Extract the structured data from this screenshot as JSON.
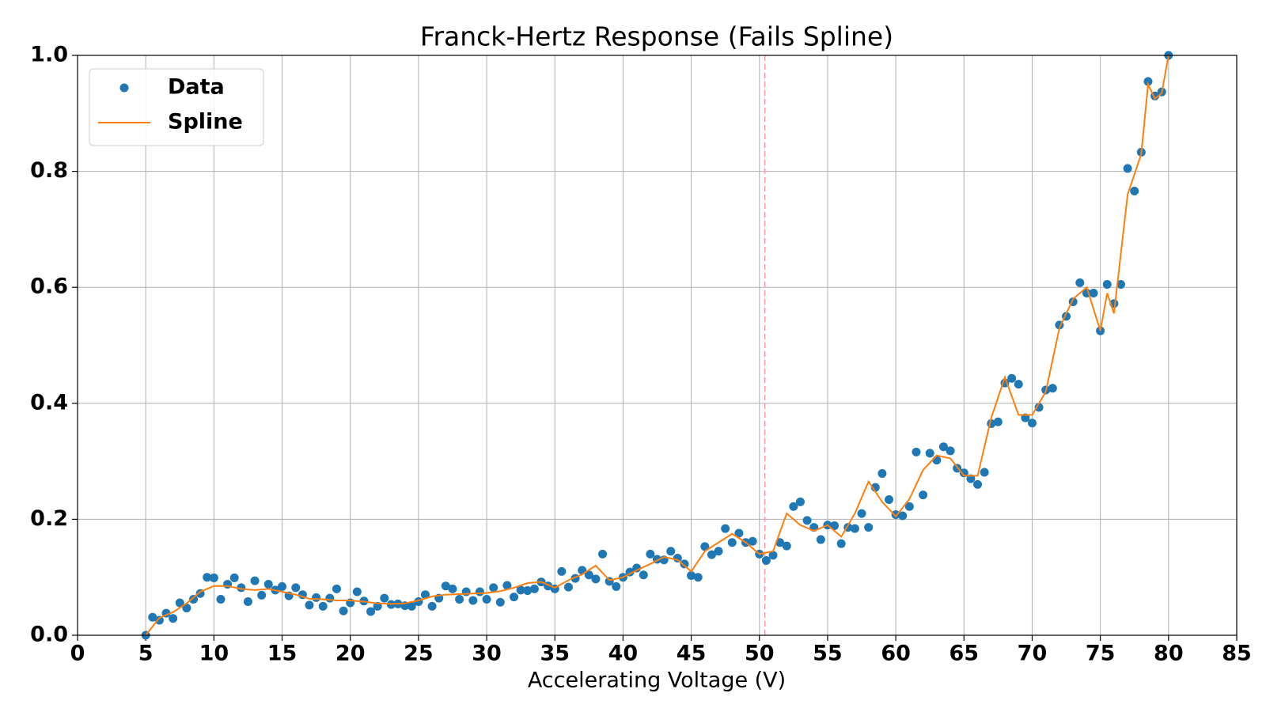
{
  "chart_data": {
    "type": "line-scatter",
    "title": "Franck-Hertz Response (Fails Spline)",
    "x_label": "Accelerating Voltage (V)",
    "xlim": [
      0,
      85
    ],
    "ylim": [
      0,
      1
    ],
    "xticks": [
      0,
      5,
      10,
      15,
      20,
      25,
      30,
      35,
      40,
      45,
      50,
      55,
      60,
      65,
      70,
      75,
      80,
      85
    ],
    "yticks": [
      {
        "value": 0,
        "label": "0.0"
      },
      0.2,
      0.4,
      0.6,
      0.8,
      {
        "value": 1,
        "label": "1.0"
      }
    ],
    "grid": true,
    "legend": "upper left",
    "reference_line": {
      "x": 50.4,
      "color": "#ff9aa2"
    },
    "series": [
      {
        "name": "Data",
        "kind": "scatter",
        "color": "#1f77b4",
        "x": [
          5,
          5.5,
          6,
          6.5,
          7,
          7.5,
          8,
          8.5,
          9,
          9.5,
          10,
          10.5,
          11,
          11.5,
          12,
          12.5,
          13,
          13.5,
          14,
          14.5,
          15,
          15.5,
          16,
          16.5,
          17,
          17.5,
          18,
          18.5,
          19,
          19.5,
          20,
          20.5,
          21,
          21.5,
          22,
          22.5,
          23,
          23.5,
          24,
          24.5,
          25,
          25.5,
          26,
          26.5,
          27,
          27.5,
          28,
          28.5,
          29,
          29.5,
          30,
          30.5,
          31,
          31.5,
          32,
          32.5,
          33,
          33.5,
          34,
          34.5,
          35,
          35.5,
          36,
          36.5,
          37,
          37.5,
          38,
          38.5,
          39,
          39.5,
          40,
          40.5,
          41,
          41.5,
          42,
          42.5,
          43,
          43.5,
          44,
          44.5,
          45,
          45.5,
          46,
          46.5,
          47,
          47.5,
          48,
          48.5,
          49,
          49.5,
          50,
          50.5,
          51,
          51.5,
          52,
          52.5,
          53,
          53.5,
          54,
          54.5,
          55,
          55.5,
          56,
          56.5,
          57,
          57.5,
          58,
          58.5,
          59,
          59.5,
          60,
          60.5,
          61,
          61.5,
          62,
          62.5,
          63,
          63.5,
          64,
          64.5,
          65,
          65.5,
          66,
          66.5,
          67,
          67.5,
          68,
          68.5,
          69,
          69.5,
          70,
          70.5,
          71,
          71.5,
          72,
          72.5,
          73,
          73.5,
          74,
          74.5,
          75,
          75.5,
          76,
          76.5,
          77,
          77.5,
          78,
          78.5,
          79,
          79.5,
          80
        ],
        "values": [
          0,
          0.031,
          0.026,
          0.038,
          0.029,
          0.056,
          0.047,
          0.062,
          0.072,
          0.1,
          0.099,
          0.062,
          0.088,
          0.099,
          0.082,
          0.058,
          0.094,
          0.069,
          0.088,
          0.078,
          0.084,
          0.068,
          0.082,
          0.07,
          0.052,
          0.065,
          0.05,
          0.064,
          0.08,
          0.042,
          0.056,
          0.075,
          0.059,
          0.041,
          0.05,
          0.064,
          0.053,
          0.054,
          0.051,
          0.05,
          0.058,
          0.07,
          0.05,
          0.064,
          0.085,
          0.08,
          0.062,
          0.075,
          0.06,
          0.075,
          0.062,
          0.082,
          0.057,
          0.086,
          0.066,
          0.078,
          0.077,
          0.08,
          0.092,
          0.085,
          0.08,
          0.11,
          0.083,
          0.098,
          0.112,
          0.104,
          0.097,
          0.14,
          0.093,
          0.084,
          0.1,
          0.109,
          0.116,
          0.104,
          0.14,
          0.131,
          0.13,
          0.145,
          0.133,
          0.123,
          0.103,
          0.1,
          0.153,
          0.139,
          0.145,
          0.184,
          0.16,
          0.176,
          0.16,
          0.162,
          0.14,
          0.129,
          0.138,
          0.16,
          0.154,
          0.222,
          0.23,
          0.198,
          0.186,
          0.165,
          0.19,
          0.189,
          0.158,
          0.186,
          0.184,
          0.21,
          0.186,
          0.255,
          0.279,
          0.234,
          0.208,
          0.206,
          0.222,
          0.316,
          0.242,
          0.314,
          0.302,
          0.325,
          0.318,
          0.288,
          0.28,
          0.27,
          0.26,
          0.281,
          0.365,
          0.368,
          0.435,
          0.443,
          0.433,
          0.375,
          0.366,
          0.393,
          0.423,
          0.426,
          0.535,
          0.55,
          0.575,
          0.608,
          0.59,
          0.59,
          0.525,
          0.605,
          0.572,
          0.605,
          0.805,
          0.766,
          0.833,
          0.955,
          0.93,
          0.937,
          1.0
        ]
      },
      {
        "name": "Spline",
        "kind": "line",
        "color": "#ff7f0e",
        "x": [
          5,
          6,
          7,
          8,
          9,
          10,
          11,
          12,
          13,
          14,
          15,
          16,
          17,
          18,
          19,
          20,
          21,
          22,
          23,
          24,
          25,
          26,
          27,
          28,
          29,
          30,
          31,
          32,
          33,
          34,
          35,
          36,
          37,
          38,
          39,
          40,
          41,
          42,
          43,
          44,
          45,
          46,
          47,
          48,
          49,
          50,
          51,
          52,
          53,
          54,
          55,
          56,
          57,
          58,
          59,
          60,
          61,
          62,
          63,
          64,
          65,
          66,
          67,
          68,
          69,
          70,
          71,
          72,
          73,
          74,
          75,
          75.5,
          76,
          77,
          78,
          78.5,
          79,
          79.5,
          80
        ],
        "values": [
          0,
          0.03,
          0.04,
          0.055,
          0.075,
          0.085,
          0.085,
          0.08,
          0.078,
          0.08,
          0.075,
          0.07,
          0.063,
          0.062,
          0.06,
          0.06,
          0.058,
          0.055,
          0.054,
          0.055,
          0.06,
          0.067,
          0.07,
          0.071,
          0.072,
          0.073,
          0.076,
          0.082,
          0.09,
          0.092,
          0.082,
          0.095,
          0.105,
          0.12,
          0.095,
          0.1,
          0.112,
          0.123,
          0.135,
          0.13,
          0.11,
          0.145,
          0.16,
          0.175,
          0.16,
          0.14,
          0.145,
          0.21,
          0.19,
          0.18,
          0.19,
          0.17,
          0.21,
          0.265,
          0.23,
          0.205,
          0.235,
          0.285,
          0.31,
          0.305,
          0.275,
          0.275,
          0.375,
          0.445,
          0.38,
          0.38,
          0.42,
          0.53,
          0.58,
          0.6,
          0.525,
          0.59,
          0.555,
          0.76,
          0.83,
          0.95,
          0.925,
          0.935,
          1.0
        ]
      }
    ]
  }
}
